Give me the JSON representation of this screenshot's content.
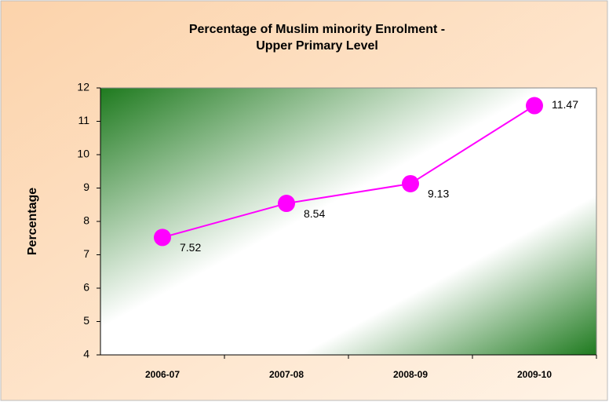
{
  "chart_data": {
    "type": "line",
    "title": [
      "Percentage of Muslim minority Enrolment -",
      "Upper Primary Level"
    ],
    "y_label": "Percentage",
    "categories": [
      "2006-07",
      "2007-08",
      "2008-09",
      "2009-10"
    ],
    "series": [
      {
        "name": "Percentage",
        "color": "#ff00ff",
        "values": [
          7.52,
          8.54,
          9.13,
          11.47
        ]
      }
    ],
    "ylim": [
      4,
      12
    ],
    "yticks": [
      4,
      5,
      6,
      7,
      8,
      9,
      10,
      11,
      12
    ],
    "grid": false,
    "legend": false
  }
}
